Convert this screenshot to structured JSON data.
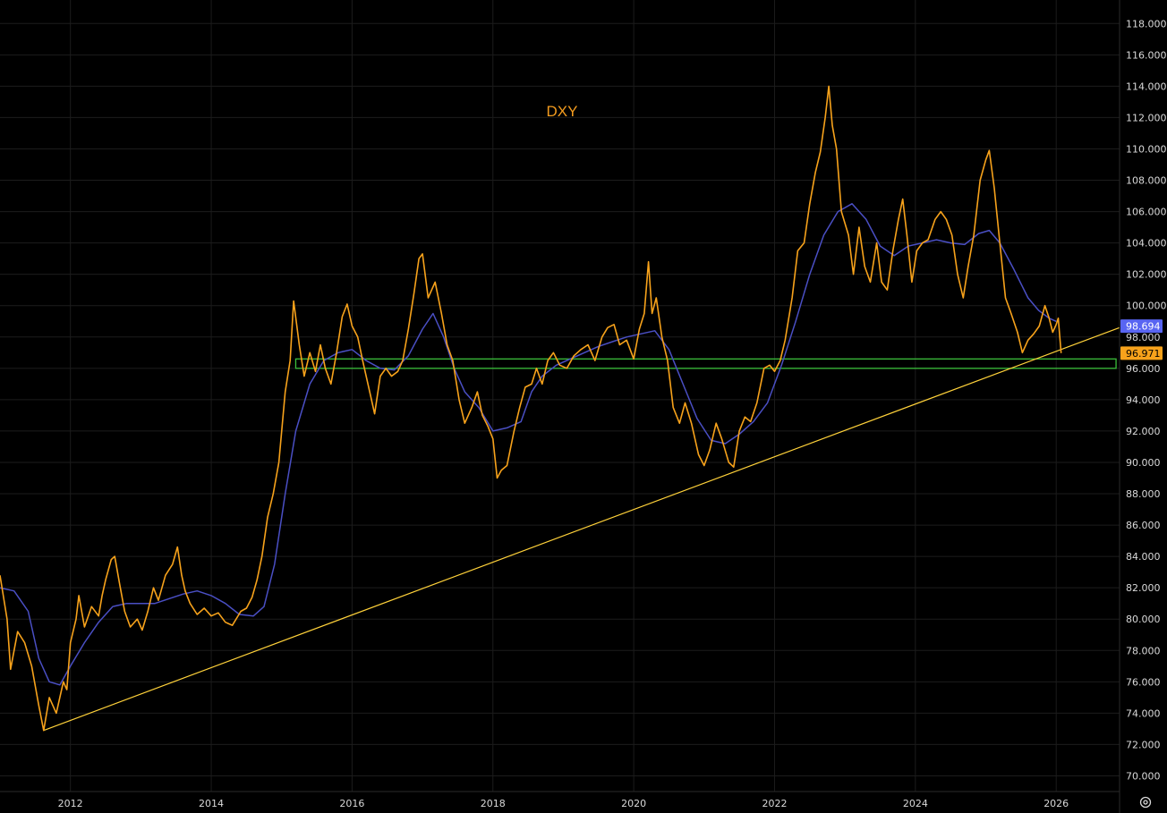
{
  "chart_data": {
    "type": "line",
    "title": "DXY",
    "xlabel": "",
    "ylabel": "",
    "x_range": [
      2011.0,
      2026.9
    ],
    "ylim": [
      69.0,
      119.5
    ],
    "grid": true,
    "x_ticks": [
      {
        "value": 2012.0,
        "label": "2012"
      },
      {
        "value": 2014.0,
        "label": "2014"
      },
      {
        "value": 2016.0,
        "label": "2016"
      },
      {
        "value": 2018.0,
        "label": "2018"
      },
      {
        "value": 2020.0,
        "label": "2020"
      },
      {
        "value": 2022.0,
        "label": "2022"
      },
      {
        "value": 2024.0,
        "label": "2024"
      },
      {
        "value": 2026.0,
        "label": "2026"
      }
    ],
    "y_ticks": [
      70,
      72,
      74,
      76,
      78,
      80,
      82,
      84,
      86,
      88,
      90,
      92,
      94,
      96,
      98,
      100,
      102,
      104,
      106,
      108,
      110,
      112,
      114,
      116,
      118
    ],
    "y_tick_labels": [
      "70.000",
      "72.000",
      "74.000",
      "76.000",
      "78.000",
      "80.000",
      "82.000",
      "84.000",
      "86.000",
      "88.000",
      "90.000",
      "92.000",
      "94.000",
      "96.000",
      "98.000",
      "100.000",
      "102.000",
      "104.000",
      "106.000",
      "108.000",
      "110.000",
      "112.000",
      "114.000",
      "116.000",
      "118.000"
    ],
    "series": [
      {
        "name": "DXY",
        "color": "#f7a21b",
        "points": [
          [
            2011.0,
            82.8
          ],
          [
            2011.1,
            80.0
          ],
          [
            2011.15,
            76.8
          ],
          [
            2011.25,
            79.2
          ],
          [
            2011.35,
            78.5
          ],
          [
            2011.45,
            77.0
          ],
          [
            2011.55,
            74.5
          ],
          [
            2011.62,
            72.9
          ],
          [
            2011.7,
            75.0
          ],
          [
            2011.8,
            74.0
          ],
          [
            2011.9,
            76.0
          ],
          [
            2011.95,
            75.5
          ],
          [
            2012.0,
            78.5
          ],
          [
            2012.08,
            80.0
          ],
          [
            2012.12,
            81.5
          ],
          [
            2012.2,
            79.5
          ],
          [
            2012.3,
            80.8
          ],
          [
            2012.4,
            80.2
          ],
          [
            2012.45,
            81.5
          ],
          [
            2012.5,
            82.5
          ],
          [
            2012.58,
            83.8
          ],
          [
            2012.63,
            84.0
          ],
          [
            2012.7,
            82.2
          ],
          [
            2012.77,
            80.5
          ],
          [
            2012.85,
            79.5
          ],
          [
            2012.95,
            80.0
          ],
          [
            2013.02,
            79.3
          ],
          [
            2013.1,
            80.5
          ],
          [
            2013.18,
            82.0
          ],
          [
            2013.25,
            81.2
          ],
          [
            2013.35,
            82.8
          ],
          [
            2013.45,
            83.5
          ],
          [
            2013.52,
            84.6
          ],
          [
            2013.58,
            82.8
          ],
          [
            2013.63,
            81.8
          ],
          [
            2013.7,
            81.0
          ],
          [
            2013.8,
            80.3
          ],
          [
            2013.9,
            80.7
          ],
          [
            2014.0,
            80.2
          ],
          [
            2014.1,
            80.4
          ],
          [
            2014.2,
            79.8
          ],
          [
            2014.3,
            79.6
          ],
          [
            2014.42,
            80.5
          ],
          [
            2014.5,
            80.7
          ],
          [
            2014.58,
            81.4
          ],
          [
            2014.65,
            82.5
          ],
          [
            2014.72,
            84.0
          ],
          [
            2014.8,
            86.5
          ],
          [
            2014.88,
            88.0
          ],
          [
            2014.96,
            90.0
          ],
          [
            2015.05,
            94.5
          ],
          [
            2015.12,
            96.5
          ],
          [
            2015.17,
            100.3
          ],
          [
            2015.25,
            97.5
          ],
          [
            2015.32,
            95.5
          ],
          [
            2015.4,
            97.0
          ],
          [
            2015.48,
            95.8
          ],
          [
            2015.55,
            97.5
          ],
          [
            2015.62,
            96.0
          ],
          [
            2015.7,
            95.0
          ],
          [
            2015.78,
            97.0
          ],
          [
            2015.86,
            99.3
          ],
          [
            2015.93,
            100.1
          ],
          [
            2016.0,
            98.7
          ],
          [
            2016.08,
            98.0
          ],
          [
            2016.15,
            96.5
          ],
          [
            2016.25,
            94.5
          ],
          [
            2016.32,
            93.1
          ],
          [
            2016.4,
            95.5
          ],
          [
            2016.48,
            96.0
          ],
          [
            2016.56,
            95.5
          ],
          [
            2016.65,
            95.8
          ],
          [
            2016.72,
            96.5
          ],
          [
            2016.8,
            98.5
          ],
          [
            2016.88,
            100.8
          ],
          [
            2016.95,
            103.0
          ],
          [
            2017.0,
            103.3
          ],
          [
            2017.08,
            100.5
          ],
          [
            2017.18,
            101.5
          ],
          [
            2017.27,
            99.5
          ],
          [
            2017.35,
            97.5
          ],
          [
            2017.43,
            96.5
          ],
          [
            2017.52,
            94.0
          ],
          [
            2017.6,
            92.5
          ],
          [
            2017.7,
            93.5
          ],
          [
            2017.78,
            94.5
          ],
          [
            2017.85,
            93.0
          ],
          [
            2017.93,
            92.3
          ],
          [
            2018.0,
            91.5
          ],
          [
            2018.06,
            89.0
          ],
          [
            2018.12,
            89.5
          ],
          [
            2018.2,
            89.8
          ],
          [
            2018.3,
            92.0
          ],
          [
            2018.38,
            93.5
          ],
          [
            2018.46,
            94.8
          ],
          [
            2018.55,
            95.0
          ],
          [
            2018.62,
            96.0
          ],
          [
            2018.7,
            95.0
          ],
          [
            2018.78,
            96.5
          ],
          [
            2018.86,
            97.0
          ],
          [
            2018.95,
            96.2
          ],
          [
            2019.05,
            96.0
          ],
          [
            2019.15,
            96.8
          ],
          [
            2019.25,
            97.2
          ],
          [
            2019.35,
            97.5
          ],
          [
            2019.45,
            96.5
          ],
          [
            2019.55,
            98.0
          ],
          [
            2019.63,
            98.6
          ],
          [
            2019.72,
            98.8
          ],
          [
            2019.8,
            97.5
          ],
          [
            2019.9,
            97.8
          ],
          [
            2020.0,
            96.6
          ],
          [
            2020.08,
            98.5
          ],
          [
            2020.15,
            99.5
          ],
          [
            2020.21,
            102.8
          ],
          [
            2020.26,
            99.5
          ],
          [
            2020.32,
            100.5
          ],
          [
            2020.4,
            98.0
          ],
          [
            2020.48,
            96.5
          ],
          [
            2020.56,
            93.5
          ],
          [
            2020.65,
            92.5
          ],
          [
            2020.73,
            93.8
          ],
          [
            2020.82,
            92.5
          ],
          [
            2020.92,
            90.5
          ],
          [
            2021.0,
            89.8
          ],
          [
            2021.08,
            90.8
          ],
          [
            2021.17,
            92.5
          ],
          [
            2021.25,
            91.5
          ],
          [
            2021.35,
            90.0
          ],
          [
            2021.42,
            89.7
          ],
          [
            2021.5,
            92.0
          ],
          [
            2021.58,
            92.9
          ],
          [
            2021.66,
            92.6
          ],
          [
            2021.75,
            93.8
          ],
          [
            2021.85,
            96.0
          ],
          [
            2021.93,
            96.2
          ],
          [
            2022.0,
            95.8
          ],
          [
            2022.08,
            96.5
          ],
          [
            2022.15,
            97.8
          ],
          [
            2022.25,
            100.5
          ],
          [
            2022.33,
            103.5
          ],
          [
            2022.42,
            104.0
          ],
          [
            2022.5,
            106.5
          ],
          [
            2022.58,
            108.5
          ],
          [
            2022.65,
            109.8
          ],
          [
            2022.72,
            112.0
          ],
          [
            2022.77,
            114.0
          ],
          [
            2022.82,
            111.5
          ],
          [
            2022.88,
            110.0
          ],
          [
            2022.95,
            106.0
          ],
          [
            2023.05,
            104.5
          ],
          [
            2023.12,
            102.0
          ],
          [
            2023.2,
            105.0
          ],
          [
            2023.28,
            102.5
          ],
          [
            2023.36,
            101.5
          ],
          [
            2023.45,
            104.0
          ],
          [
            2023.52,
            101.5
          ],
          [
            2023.6,
            101.0
          ],
          [
            2023.68,
            103.5
          ],
          [
            2023.76,
            105.5
          ],
          [
            2023.82,
            106.8
          ],
          [
            2023.88,
            104.5
          ],
          [
            2023.95,
            101.5
          ],
          [
            2024.02,
            103.5
          ],
          [
            2024.1,
            104.0
          ],
          [
            2024.18,
            104.2
          ],
          [
            2024.28,
            105.5
          ],
          [
            2024.36,
            106.0
          ],
          [
            2024.44,
            105.5
          ],
          [
            2024.52,
            104.5
          ],
          [
            2024.6,
            102.0
          ],
          [
            2024.68,
            100.5
          ],
          [
            2024.75,
            102.5
          ],
          [
            2024.83,
            104.5
          ],
          [
            2024.92,
            108.0
          ],
          [
            2025.0,
            109.3
          ],
          [
            2025.05,
            109.9
          ],
          [
            2025.12,
            107.5
          ],
          [
            2025.2,
            104.0
          ],
          [
            2025.28,
            100.5
          ],
          [
            2025.36,
            99.5
          ],
          [
            2025.45,
            98.3
          ],
          [
            2025.52,
            97.0
          ],
          [
            2025.6,
            97.8
          ],
          [
            2025.68,
            98.2
          ],
          [
            2025.76,
            98.7
          ],
          [
            2025.84,
            100.0
          ],
          [
            2025.9,
            99.2
          ],
          [
            2025.95,
            98.3
          ],
          [
            2026.0,
            98.8
          ],
          [
            2026.03,
            99.2
          ],
          [
            2026.07,
            96.971
          ]
        ]
      },
      {
        "name": "",
        "color": "#4a4fc4",
        "points": [
          [
            2011.0,
            82.0
          ],
          [
            2011.2,
            81.8
          ],
          [
            2011.4,
            80.5
          ],
          [
            2011.55,
            77.5
          ],
          [
            2011.7,
            76.0
          ],
          [
            2011.85,
            75.8
          ],
          [
            2012.0,
            77.0
          ],
          [
            2012.2,
            78.5
          ],
          [
            2012.4,
            79.8
          ],
          [
            2012.6,
            80.8
          ],
          [
            2012.8,
            81.0
          ],
          [
            2013.0,
            81.0
          ],
          [
            2013.2,
            81.0
          ],
          [
            2013.4,
            81.3
          ],
          [
            2013.6,
            81.6
          ],
          [
            2013.8,
            81.8
          ],
          [
            2014.0,
            81.5
          ],
          [
            2014.2,
            81.0
          ],
          [
            2014.4,
            80.3
          ],
          [
            2014.6,
            80.2
          ],
          [
            2014.75,
            80.8
          ],
          [
            2014.9,
            83.5
          ],
          [
            2015.05,
            88.0
          ],
          [
            2015.2,
            92.0
          ],
          [
            2015.4,
            95.0
          ],
          [
            2015.6,
            96.5
          ],
          [
            2015.8,
            97.0
          ],
          [
            2016.0,
            97.2
          ],
          [
            2016.2,
            96.5
          ],
          [
            2016.4,
            96.0
          ],
          [
            2016.6,
            95.9
          ],
          [
            2016.8,
            96.8
          ],
          [
            2017.0,
            98.5
          ],
          [
            2017.15,
            99.5
          ],
          [
            2017.3,
            98.0
          ],
          [
            2017.45,
            96.0
          ],
          [
            2017.6,
            94.5
          ],
          [
            2017.8,
            93.5
          ],
          [
            2018.0,
            92.0
          ],
          [
            2018.2,
            92.2
          ],
          [
            2018.4,
            92.6
          ],
          [
            2018.55,
            94.5
          ],
          [
            2018.7,
            95.5
          ],
          [
            2018.9,
            96.2
          ],
          [
            2019.1,
            96.6
          ],
          [
            2019.3,
            97.0
          ],
          [
            2019.5,
            97.4
          ],
          [
            2019.7,
            97.7
          ],
          [
            2019.9,
            98.0
          ],
          [
            2020.1,
            98.2
          ],
          [
            2020.3,
            98.4
          ],
          [
            2020.5,
            97.2
          ],
          [
            2020.7,
            95.0
          ],
          [
            2020.9,
            92.8
          ],
          [
            2021.1,
            91.4
          ],
          [
            2021.3,
            91.2
          ],
          [
            2021.5,
            91.8
          ],
          [
            2021.7,
            92.6
          ],
          [
            2021.9,
            93.8
          ],
          [
            2022.1,
            96.2
          ],
          [
            2022.3,
            99.0
          ],
          [
            2022.5,
            102.0
          ],
          [
            2022.7,
            104.5
          ],
          [
            2022.9,
            106.0
          ],
          [
            2023.1,
            106.5
          ],
          [
            2023.3,
            105.5
          ],
          [
            2023.5,
            103.8
          ],
          [
            2023.7,
            103.2
          ],
          [
            2023.9,
            103.8
          ],
          [
            2024.1,
            104.0
          ],
          [
            2024.3,
            104.2
          ],
          [
            2024.5,
            104.0
          ],
          [
            2024.7,
            103.9
          ],
          [
            2024.9,
            104.6
          ],
          [
            2025.05,
            104.8
          ],
          [
            2025.2,
            104.0
          ],
          [
            2025.4,
            102.3
          ],
          [
            2025.6,
            100.5
          ],
          [
            2025.75,
            99.7
          ],
          [
            2025.9,
            99.2
          ],
          [
            2026.0,
            99.0
          ]
        ]
      }
    ],
    "annotations": {
      "trendline": {
        "color": "#ffd23a",
        "from": [
          2011.62,
          72.9
        ],
        "to": [
          2026.9,
          98.6
        ]
      },
      "zone": {
        "color": "#3bbf3b",
        "x_start": 2015.2,
        "x_end": 2026.85,
        "y_low": 96.0,
        "y_high": 96.6
      }
    },
    "price_tags": [
      {
        "label": "98.694",
        "value": 98.694,
        "background": "#5865f2",
        "text_color": "#ffffff"
      },
      {
        "label": "96.971",
        "value": 96.971,
        "background": "#f7a21b",
        "text_color": "#000000"
      }
    ]
  },
  "icons": {
    "settings": "settings-gear-icon"
  }
}
